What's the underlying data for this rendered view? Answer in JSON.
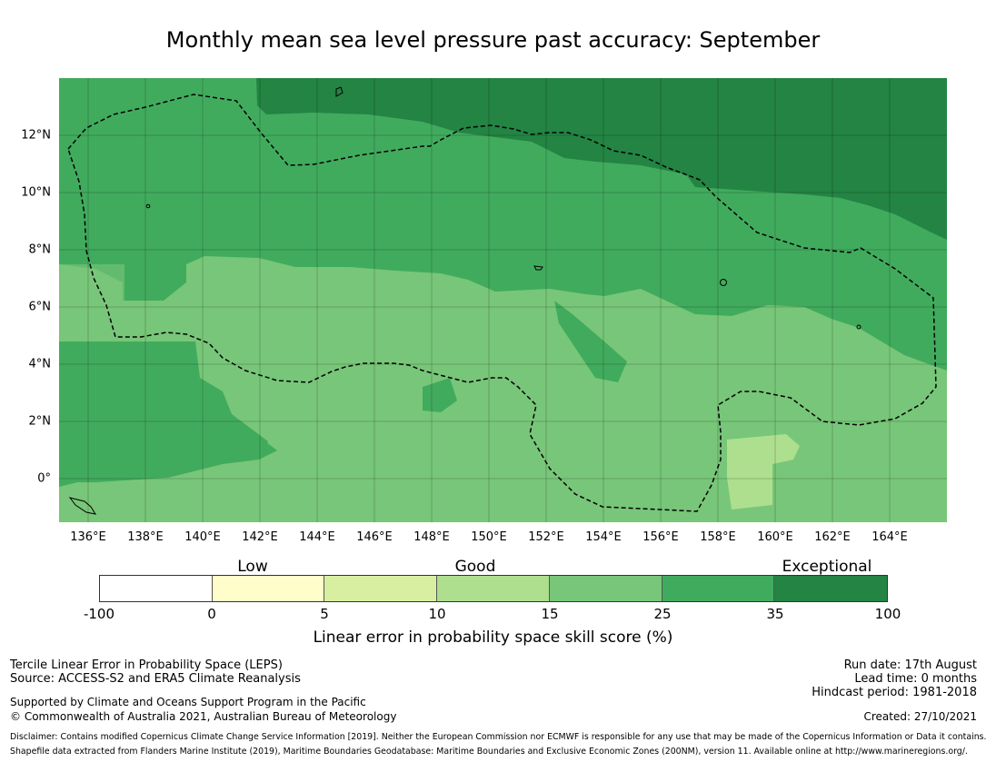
{
  "title": "Monthly mean sea level pressure past accuracy: September",
  "map": {
    "lon_ticks": [
      "136°E",
      "138°E",
      "140°E",
      "142°E",
      "144°E",
      "146°E",
      "148°E",
      "150°E",
      "152°E",
      "154°E",
      "156°E",
      "158°E",
      "160°E",
      "162°E",
      "164°E"
    ],
    "lat_ticks": [
      "12°N",
      "10°N",
      "8°N",
      "6°N",
      "4°N",
      "2°N",
      "0°"
    ],
    "lon_range": [
      135,
      166
    ],
    "lat_range": [
      -1.5,
      14
    ],
    "region_outline": "Exclusive Economic Zone boundary (dashed)"
  },
  "colorbar": {
    "label": "Linear error in probability space skill score (%)",
    "categories": [
      "Low",
      "Good",
      "Exceptional"
    ],
    "ticks": [
      "-100",
      "0",
      "5",
      "10",
      "15",
      "25",
      "35",
      "100"
    ],
    "colors": [
      "#ffffff",
      "#fffecb",
      "#d8efa2",
      "#addf8e",
      "#78c679",
      "#41ab5d",
      "#238443"
    ]
  },
  "footer": {
    "method": "Tercile Linear Error in Probability Space (LEPS)",
    "source": "Source: ACCESS-S2 and ERA5 Climate Reanalysis",
    "support": "Supported by Climate and Oceans Support Program in the Pacific",
    "copyright": "© Commonwealth of Australia 2021, Australian Bureau of Meteorology",
    "run_date": "Run date: 17th August",
    "lead_time": "Lead time: 0 months",
    "hindcast": "Hindcast period: 1981-2018",
    "created": "Created: 27/10/2021",
    "disclaimer1": "Disclaimer: Contains modified Copernicus Climate Change Service Information [2019]. Neither the European Commission nor ECMWF is responsible for any use that may be made of the Copernicus Information or Data it contains.",
    "disclaimer2": "Shapefile data extracted from Flanders Marine Institute (2019), Maritime Boundaries Geodatabase: Maritime Boundaries and Exclusive Economic Zones (200NM), version 11. Available online at http://www.marineregions.org/."
  }
}
